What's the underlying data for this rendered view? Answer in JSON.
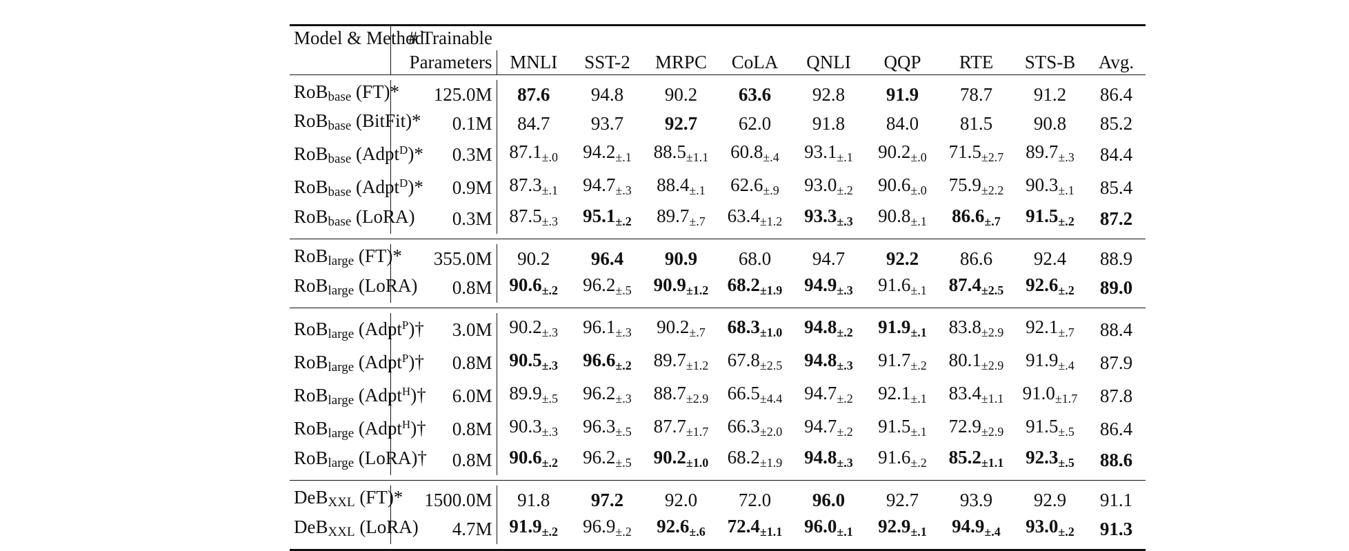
{
  "table": {
    "header": {
      "model": "Model & Method",
      "params": [
        "# Trainable",
        "Parameters"
      ],
      "columns": [
        "MNLI",
        "SST-2",
        "MRPC",
        "CoLA",
        "QNLI",
        "QQP",
        "RTE",
        "STS-B",
        "Avg."
      ]
    },
    "groups": [
      {
        "rows": [
          {
            "model": [
              {
                "text": "RoB"
              },
              {
                "sub": "base"
              },
              {
                "text": " (FT)*"
              }
            ],
            "params": "125.0M",
            "cells": [
              {
                "v": "87.6",
                "b": true
              },
              {
                "v": "94.8"
              },
              {
                "v": "90.2"
              },
              {
                "v": "63.6",
                "b": true
              },
              {
                "v": "92.8"
              },
              {
                "v": "91.9",
                "b": true
              },
              {
                "v": "78.7"
              },
              {
                "v": "91.2"
              },
              {
                "v": "86.4"
              }
            ]
          },
          {
            "model": [
              {
                "text": "RoB"
              },
              {
                "sub": "base"
              },
              {
                "text": " (BitFit)*"
              }
            ],
            "params": "0.1M",
            "cells": [
              {
                "v": "84.7"
              },
              {
                "v": "93.7"
              },
              {
                "v": "92.7",
                "b": true
              },
              {
                "v": "62.0"
              },
              {
                "v": "91.8"
              },
              {
                "v": "84.0"
              },
              {
                "v": "81.5"
              },
              {
                "v": "90.8"
              },
              {
                "v": "85.2"
              }
            ]
          },
          {
            "model": [
              {
                "text": "RoB"
              },
              {
                "sub": "base"
              },
              {
                "text": " (Adpt"
              },
              {
                "sup": "D"
              },
              {
                "text": ")*"
              }
            ],
            "params": "0.3M",
            "cells": [
              {
                "v": "87.1",
                "pm": "±.0"
              },
              {
                "v": "94.2",
                "pm": "±.1"
              },
              {
                "v": "88.5",
                "pm": "±1.1"
              },
              {
                "v": "60.8",
                "pm": "±.4"
              },
              {
                "v": "93.1",
                "pm": "±.1"
              },
              {
                "v": "90.2",
                "pm": "±.0"
              },
              {
                "v": "71.5",
                "pm": "±2.7"
              },
              {
                "v": "89.7",
                "pm": "±.3"
              },
              {
                "v": "84.4"
              }
            ]
          },
          {
            "model": [
              {
                "text": "RoB"
              },
              {
                "sub": "base"
              },
              {
                "text": " (Adpt"
              },
              {
                "sup": "D"
              },
              {
                "text": ")*"
              }
            ],
            "params": "0.9M",
            "cells": [
              {
                "v": "87.3",
                "pm": "±.1"
              },
              {
                "v": "94.7",
                "pm": "±.3"
              },
              {
                "v": "88.4",
                "pm": "±.1"
              },
              {
                "v": "62.6",
                "pm": "±.9"
              },
              {
                "v": "93.0",
                "pm": "±.2"
              },
              {
                "v": "90.6",
                "pm": "±.0"
              },
              {
                "v": "75.9",
                "pm": "±2.2"
              },
              {
                "v": "90.3",
                "pm": "±.1"
              },
              {
                "v": "85.4"
              }
            ]
          },
          {
            "model": [
              {
                "text": "RoB"
              },
              {
                "sub": "base"
              },
              {
                "text": " (LoRA)"
              }
            ],
            "params": "0.3M",
            "cells": [
              {
                "v": "87.5",
                "pm": "±.3"
              },
              {
                "v": "95.1",
                "pm": "±.2",
                "b": true
              },
              {
                "v": "89.7",
                "pm": "±.7"
              },
              {
                "v": "63.4",
                "pm": "±1.2"
              },
              {
                "v": "93.3",
                "pm": "±.3",
                "b": true
              },
              {
                "v": "90.8",
                "pm": "±.1"
              },
              {
                "v": "86.6",
                "pm": "±.7",
                "b": true
              },
              {
                "v": "91.5",
                "pm": "±.2",
                "b": true
              },
              {
                "v": "87.2",
                "b": true
              }
            ]
          }
        ]
      },
      {
        "rows": [
          {
            "model": [
              {
                "text": "RoB"
              },
              {
                "sub": "large"
              },
              {
                "text": " (FT)*"
              }
            ],
            "params": "355.0M",
            "cells": [
              {
                "v": "90.2"
              },
              {
                "v": "96.4",
                "b": true
              },
              {
                "v": "90.9",
                "b": true
              },
              {
                "v": "68.0"
              },
              {
                "v": "94.7"
              },
              {
                "v": "92.2",
                "b": true
              },
              {
                "v": "86.6"
              },
              {
                "v": "92.4"
              },
              {
                "v": "88.9"
              }
            ]
          },
          {
            "model": [
              {
                "text": "RoB"
              },
              {
                "sub": "large"
              },
              {
                "text": " (LoRA)"
              }
            ],
            "params": "0.8M",
            "cells": [
              {
                "v": "90.6",
                "pm": "±.2",
                "b": true
              },
              {
                "v": "96.2",
                "pm": "±.5"
              },
              {
                "v": "90.9",
                "pm": "±1.2",
                "b": true
              },
              {
                "v": "68.2",
                "pm": "±1.9",
                "b": true
              },
              {
                "v": "94.9",
                "pm": "±.3",
                "b": true
              },
              {
                "v": "91.6",
                "pm": "±.1"
              },
              {
                "v": "87.4",
                "pm": "±2.5",
                "b": true
              },
              {
                "v": "92.6",
                "pm": "±.2",
                "b": true
              },
              {
                "v": "89.0",
                "b": true
              }
            ]
          }
        ]
      },
      {
        "rows": [
          {
            "model": [
              {
                "text": "RoB"
              },
              {
                "sub": "large"
              },
              {
                "text": " (Adpt"
              },
              {
                "sup": "P"
              },
              {
                "text": ")†"
              }
            ],
            "params": "3.0M",
            "cells": [
              {
                "v": "90.2",
                "pm": "±.3"
              },
              {
                "v": "96.1",
                "pm": "±.3"
              },
              {
                "v": "90.2",
                "pm": "±.7"
              },
              {
                "v": "68.3",
                "pm": "±1.0",
                "b": true
              },
              {
                "v": "94.8",
                "pm": "±.2",
                "b": true
              },
              {
                "v": "91.9",
                "pm": "±.1",
                "b": true
              },
              {
                "v": "83.8",
                "pm": "±2.9"
              },
              {
                "v": "92.1",
                "pm": "±.7"
              },
              {
                "v": "88.4"
              }
            ]
          },
          {
            "model": [
              {
                "text": "RoB"
              },
              {
                "sub": "large"
              },
              {
                "text": " (Adpt"
              },
              {
                "sup": "P"
              },
              {
                "text": ")†"
              }
            ],
            "params": "0.8M",
            "cells": [
              {
                "v": "90.5",
                "pm": "±.3",
                "b": true
              },
              {
                "v": "96.6",
                "pm": "±.2",
                "b": true
              },
              {
                "v": "89.7",
                "pm": "±1.2"
              },
              {
                "v": "67.8",
                "pm": "±2.5"
              },
              {
                "v": "94.8",
                "pm": "±.3",
                "b": true
              },
              {
                "v": "91.7",
                "pm": "±.2"
              },
              {
                "v": "80.1",
                "pm": "±2.9"
              },
              {
                "v": "91.9",
                "pm": "±.4"
              },
              {
                "v": "87.9"
              }
            ]
          },
          {
            "model": [
              {
                "text": "RoB"
              },
              {
                "sub": "large"
              },
              {
                "text": " (Adpt"
              },
              {
                "sup": "H"
              },
              {
                "text": ")†"
              }
            ],
            "params": "6.0M",
            "cells": [
              {
                "v": "89.9",
                "pm": "±.5"
              },
              {
                "v": "96.2",
                "pm": "±.3"
              },
              {
                "v": "88.7",
                "pm": "±2.9"
              },
              {
                "v": "66.5",
                "pm": "±4.4"
              },
              {
                "v": "94.7",
                "pm": "±.2"
              },
              {
                "v": "92.1",
                "pm": "±.1"
              },
              {
                "v": "83.4",
                "pm": "±1.1"
              },
              {
                "v": "91.0",
                "pm": "±1.7"
              },
              {
                "v": "87.8"
              }
            ]
          },
          {
            "model": [
              {
                "text": "RoB"
              },
              {
                "sub": "large"
              },
              {
                "text": " (Adpt"
              },
              {
                "sup": "H"
              },
              {
                "text": ")†"
              }
            ],
            "params": "0.8M",
            "cells": [
              {
                "v": "90.3",
                "pm": "±.3"
              },
              {
                "v": "96.3",
                "pm": "±.5"
              },
              {
                "v": "87.7",
                "pm": "±1.7"
              },
              {
                "v": "66.3",
                "pm": "±2.0"
              },
              {
                "v": "94.7",
                "pm": "±.2"
              },
              {
                "v": "91.5",
                "pm": "±.1"
              },
              {
                "v": "72.9",
                "pm": "±2.9"
              },
              {
                "v": "91.5",
                "pm": "±.5"
              },
              {
                "v": "86.4"
              }
            ]
          },
          {
            "model": [
              {
                "text": "RoB"
              },
              {
                "sub": "large"
              },
              {
                "text": " (LoRA)†"
              }
            ],
            "params": "0.8M",
            "cells": [
              {
                "v": "90.6",
                "pm": "±.2",
                "b": true
              },
              {
                "v": "96.2",
                "pm": "±.5"
              },
              {
                "v": "90.2",
                "pm": "±1.0",
                "b": true
              },
              {
                "v": "68.2",
                "pm": "±1.9"
              },
              {
                "v": "94.8",
                "pm": "±.3",
                "b": true
              },
              {
                "v": "91.6",
                "pm": "±.2"
              },
              {
                "v": "85.2",
                "pm": "±1.1",
                "b": true
              },
              {
                "v": "92.3",
                "pm": "±.5",
                "b": true
              },
              {
                "v": "88.6",
                "b": true
              }
            ]
          }
        ]
      },
      {
        "rows": [
          {
            "model": [
              {
                "text": "DeB"
              },
              {
                "sub": "XXL"
              },
              {
                "text": " (FT)*"
              }
            ],
            "params": "1500.0M",
            "cells": [
              {
                "v": "91.8"
              },
              {
                "v": "97.2",
                "b": true
              },
              {
                "v": "92.0"
              },
              {
                "v": "72.0"
              },
              {
                "v": "96.0",
                "b": true
              },
              {
                "v": "92.7"
              },
              {
                "v": "93.9"
              },
              {
                "v": "92.9"
              },
              {
                "v": "91.1"
              }
            ]
          },
          {
            "model": [
              {
                "text": "DeB"
              },
              {
                "sub": "XXL"
              },
              {
                "text": " (LoRA)"
              }
            ],
            "params": "4.7M",
            "cells": [
              {
                "v": "91.9",
                "pm": "±.2",
                "b": true
              },
              {
                "v": "96.9",
                "pm": "±.2"
              },
              {
                "v": "92.6",
                "pm": "±.6",
                "b": true
              },
              {
                "v": "72.4",
                "pm": "±1.1",
                "b": true
              },
              {
                "v": "96.0",
                "pm": "±.1",
                "b": true
              },
              {
                "v": "92.9",
                "pm": "±.1",
                "b": true
              },
              {
                "v": "94.9",
                "pm": "±.4",
                "b": true
              },
              {
                "v": "93.0",
                "pm": "±.2",
                "b": true
              },
              {
                "v": "91.3",
                "b": true
              }
            ]
          }
        ]
      }
    ]
  }
}
